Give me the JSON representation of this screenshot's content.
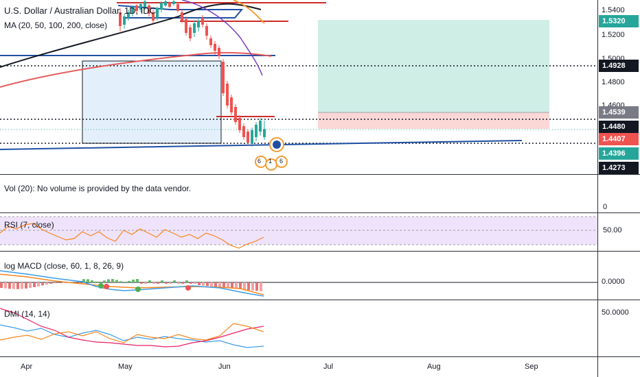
{
  "header": {
    "title": "U.S. Dollar / Australian Dollar, 1D, IDC",
    "ma_label": "MA (20, 50, 100, 200, close)"
  },
  "price_axis": {
    "ticks": [
      "1.5400",
      "1.5200",
      "1.5000",
      "1.4800",
      "1.4600"
    ],
    "tags": [
      {
        "text": "1.5320",
        "bg": "#26a69a",
        "fg": "#ffffff"
      },
      {
        "text": "1.4928",
        "bg": "#131722",
        "fg": "#ffffff"
      },
      {
        "text": "1.4539",
        "bg": "#787b86",
        "fg": "#ffffff"
      },
      {
        "text": "1.4480",
        "bg": "#131722",
        "fg": "#ffffff"
      },
      {
        "text": "1.4407",
        "bg": "#ef5350",
        "fg": "#ffffff"
      },
      {
        "text": "1.4396",
        "bg": "#26a69a",
        "fg": "#ffffff"
      },
      {
        "text": "1.4273",
        "bg": "#131722",
        "fg": "#ffffff"
      }
    ]
  },
  "volume_pane": {
    "label": "Vol (20): No volume is provided by the data vendor.",
    "axis": "0"
  },
  "rsi_pane": {
    "label": "RSI (7, close)",
    "axis": "50.00"
  },
  "macd_pane": {
    "label": "log MACD (close, 60, 1, 8, 26, 9)",
    "axis": "0.0000"
  },
  "dmi_pane": {
    "label": "DMI (14, 14)",
    "axis": "50.0000"
  },
  "time_axis": {
    "labels": [
      "Apr",
      "May",
      "Jun",
      "Jul",
      "Aug",
      "Sep"
    ]
  },
  "events": {
    "badge_a": "6",
    "badge_b": "1",
    "badge_c": "6"
  },
  "colors": {
    "up": "#26a69a",
    "down": "#ef5350",
    "ma200": "#e45a5a",
    "ma100": "#131722",
    "ma50": "#7b3fbf",
    "ma20": "#f39c33",
    "blue_line": "#1e4fa3",
    "rsi": "#f7861c",
    "dmi_plus": "#3c9be8",
    "dmi_minus": "#e91e63",
    "adx": "#f7861c"
  }
}
